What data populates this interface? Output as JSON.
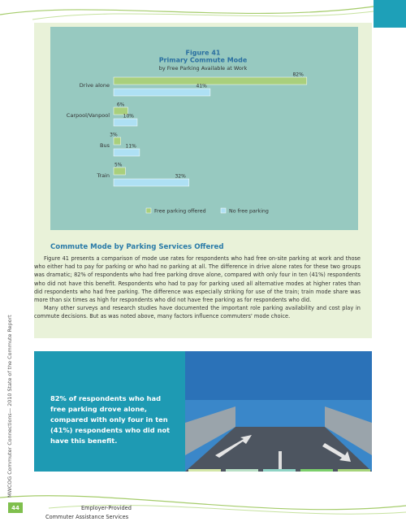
{
  "figure": {
    "chart_data": {
      "type": "bar",
      "orientation": "horizontal",
      "title": "Figure 41",
      "subtitle": "Primary Commute Mode",
      "note": "by Free Parking Available at Work",
      "categories": [
        "Drive alone",
        "Carpool/Vanpool",
        "Bus",
        "Train"
      ],
      "series": [
        {
          "name": "Free parking offered",
          "color": "#a9cf7c",
          "values": [
            82,
            6,
            3,
            5
          ],
          "value_labels": [
            "82%",
            "6%",
            "3%",
            "5%"
          ]
        },
        {
          "name": "No free parking",
          "color": "#aee0f4",
          "values": [
            41,
            10,
            11,
            32
          ],
          "value_labels": [
            "41%",
            "10%",
            "11%",
            "32%"
          ]
        }
      ],
      "xlim": [
        0,
        100
      ],
      "legend": "bottom"
    }
  },
  "section": {
    "heading": "Commute Mode by Parking Services Offered",
    "paragraphs": [
      "Figure 41 presents a comparison of mode use rates for respondents who had free on-site parking at work and those who either had to pay for parking or who had no parking at all. The difference in drive alone rates for these two groups was dramatic; 82% of respondents who had free parking drove alone, compared with only four in ten (41%) respondents who did not have this benefit. Respondents who had to pay for parking used all alternative modes at higher rates than did respondents who had free parking. The difference was especially striking for use of the train; train mode share was more than six times as high for respondents who did not have free parking as for respondents who did.",
      "Many other surveys and research studies have documented the important role parking availability and cost play in commute decisions. But as was noted above, many factors influence commuters' mode choice."
    ]
  },
  "callout": "82% of respondents who had free parking drove alone, compared with only four in ten (41%) respondents who did not have this benefit.",
  "sidebar": "MWCOG Commuter Connections— 2010 State of the Commute Report",
  "footer": {
    "page": "44",
    "line1": "Employer-Provided",
    "line2": "Commuter Assistance Services"
  }
}
